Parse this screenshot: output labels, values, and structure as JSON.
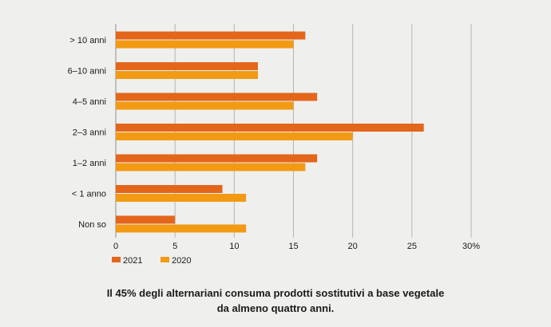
{
  "chart_data": {
    "type": "bar",
    "orientation": "horizontal",
    "categories": [
      "> 10 anni",
      "6–10 anni",
      "4–5 anni",
      "2–3 anni",
      "1–2 anni",
      "< 1 anno",
      "Non so"
    ],
    "series": [
      {
        "name": "2021",
        "color": "#e3661b",
        "values": [
          16,
          12,
          17,
          26,
          17,
          9,
          5
        ]
      },
      {
        "name": "2020",
        "color": "#f29a14",
        "values": [
          15,
          12,
          15,
          20,
          16,
          11,
          11
        ]
      }
    ],
    "xlim": [
      0,
      30
    ],
    "x_ticks": [
      0,
      5,
      10,
      15,
      20,
      25,
      30
    ],
    "x_tick_labels": [
      "0",
      "5",
      "10",
      "15",
      "20",
      "25",
      "30%"
    ],
    "grid": true,
    "legend_position": "bottom-left"
  },
  "caption": {
    "line1": "Il 45% degli alternariani consuma prodotti sostitutivi a base vegetale",
    "line2": "da almeno quattro anni."
  }
}
